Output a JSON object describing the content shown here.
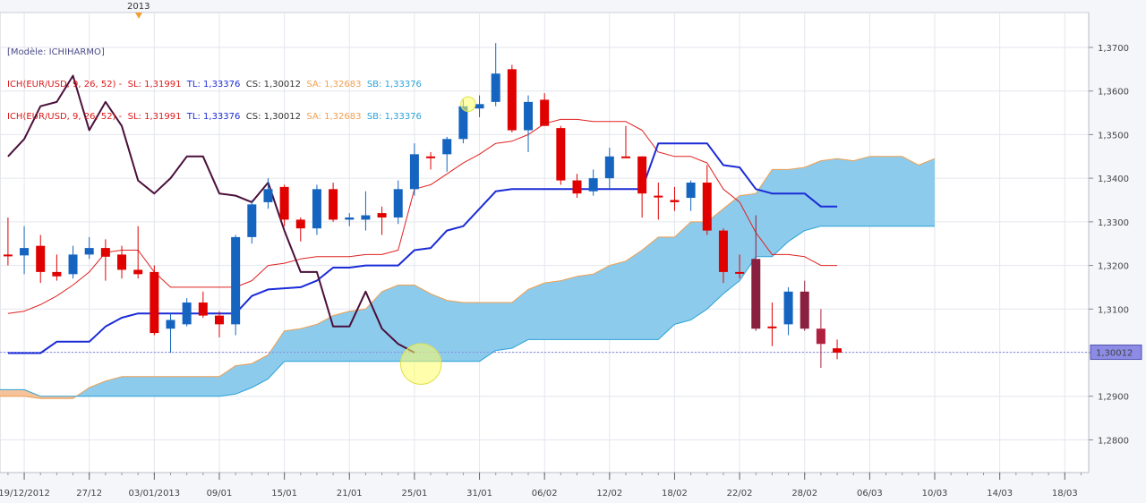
{
  "header": {
    "year_marker": "2013",
    "model_label": "[Modèle: ICHIHARMO]",
    "legend_lines": [
      {
        "symbol": "ICH(EUR/USD, 9, 26, 52) -",
        "sl": "SL: 1,31991",
        "tl": "TL: 1,33376",
        "cs": "CS: 1,30012",
        "sa": "SA: 1,32683",
        "sb": "SB: 1,33376"
      },
      {
        "symbol": "ICH(EUR/USD, 9, 26, 52) -",
        "sl": "SL: 1,31991",
        "tl": "TL: 1,33376",
        "cs": "CS: 1,30012",
        "sa": "SA: 1,32683",
        "sb": "SB: 1,33376"
      }
    ]
  },
  "colors": {
    "bull": "#1565c0",
    "bear": "#e00000",
    "bear_dark": "#8a2040",
    "tenkan": "#e02020",
    "kijun": "#1a2bd6",
    "chikou": "#4a0f3a",
    "cloud_bull": "#8ccbec",
    "cloud_bear": "#f5c29a",
    "span_a": "#f0a050",
    "span_b": "#2aa2d8",
    "highlight": "#ffff66",
    "current_price_bg": "#8c8ce6"
  },
  "chart_data": {
    "type": "candlestick",
    "instrument": "EUR/USD",
    "ylim": [
      1.2725,
      1.378
    ],
    "y_ticks": [
      "1,2800",
      "1,2900",
      "1,3000",
      "1,3100",
      "1,3200",
      "1,3300",
      "1,3400",
      "1,3500",
      "1,3600",
      "1,3700"
    ],
    "y_tick_values": [
      1.28,
      1.29,
      1.3,
      1.31,
      1.32,
      1.33,
      1.34,
      1.35,
      1.36,
      1.37
    ],
    "x_ticks": [
      {
        "i": 1,
        "label": "19/12/2012"
      },
      {
        "i": 5,
        "label": "27/12"
      },
      {
        "i": 9,
        "label": "03/01/2013"
      },
      {
        "i": 13,
        "label": "09/01"
      },
      {
        "i": 17,
        "label": "15/01"
      },
      {
        "i": 21,
        "label": "21/01"
      },
      {
        "i": 25,
        "label": "25/01"
      },
      {
        "i": 29,
        "label": "31/01"
      },
      {
        "i": 33,
        "label": "06/02"
      },
      {
        "i": 37,
        "label": "12/02"
      },
      {
        "i": 41,
        "label": "18/02"
      },
      {
        "i": 45,
        "label": "22/02"
      },
      {
        "i": 49,
        "label": "28/02"
      },
      {
        "i": 53,
        "label": "06/03"
      },
      {
        "i": 57,
        "label": "10/03"
      },
      {
        "i": 61,
        "label": "14/03"
      },
      {
        "i": 65,
        "label": "18/03"
      }
    ],
    "current_price": {
      "value": 1.3001,
      "label": "1,30012"
    },
    "candles": [
      {
        "o": 1.3225,
        "h": 1.331,
        "l": 1.32,
        "c": 1.3225
      },
      {
        "o": 1.3223,
        "h": 1.329,
        "l": 1.318,
        "c": 1.324
      },
      {
        "o": 1.3245,
        "h": 1.327,
        "l": 1.316,
        "c": 1.3185
      },
      {
        "o": 1.3185,
        "h": 1.3225,
        "l": 1.3165,
        "c": 1.3175
      },
      {
        "o": 1.318,
        "h": 1.3245,
        "l": 1.317,
        "c": 1.3225
      },
      {
        "o": 1.3225,
        "h": 1.3265,
        "l": 1.3215,
        "c": 1.324
      },
      {
        "o": 1.324,
        "h": 1.326,
        "l": 1.3165,
        "c": 1.322
      },
      {
        "o": 1.3225,
        "h": 1.3245,
        "l": 1.317,
        "c": 1.319
      },
      {
        "o": 1.319,
        "h": 1.329,
        "l": 1.317,
        "c": 1.318
      },
      {
        "o": 1.3185,
        "h": 1.32,
        "l": 1.304,
        "c": 1.3045
      },
      {
        "o": 1.3055,
        "h": 1.309,
        "l": 1.3,
        "c": 1.3075
      },
      {
        "o": 1.3065,
        "h": 1.3125,
        "l": 1.306,
        "c": 1.3115
      },
      {
        "o": 1.3115,
        "h": 1.314,
        "l": 1.308,
        "c": 1.3085
      },
      {
        "o": 1.3085,
        "h": 1.3095,
        "l": 1.3035,
        "c": 1.3065
      },
      {
        "o": 1.3065,
        "h": 1.327,
        "l": 1.304,
        "c": 1.3265
      },
      {
        "o": 1.3265,
        "h": 1.335,
        "l": 1.325,
        "c": 1.334
      },
      {
        "o": 1.3345,
        "h": 1.34,
        "l": 1.333,
        "c": 1.3375
      },
      {
        "o": 1.338,
        "h": 1.3385,
        "l": 1.329,
        "c": 1.3305
      },
      {
        "o": 1.3305,
        "h": 1.331,
        "l": 1.3255,
        "c": 1.3285
      },
      {
        "o": 1.3285,
        "h": 1.3385,
        "l": 1.327,
        "c": 1.3375
      },
      {
        "o": 1.3375,
        "h": 1.339,
        "l": 1.33,
        "c": 1.3305
      },
      {
        "o": 1.3305,
        "h": 1.332,
        "l": 1.329,
        "c": 1.331
      },
      {
        "o": 1.3305,
        "h": 1.337,
        "l": 1.328,
        "c": 1.3315
      },
      {
        "o": 1.332,
        "h": 1.3335,
        "l": 1.327,
        "c": 1.331
      },
      {
        "o": 1.331,
        "h": 1.3395,
        "l": 1.3295,
        "c": 1.3375
      },
      {
        "o": 1.3375,
        "h": 1.348,
        "l": 1.336,
        "c": 1.3455
      },
      {
        "o": 1.345,
        "h": 1.346,
        "l": 1.342,
        "c": 1.345
      },
      {
        "o": 1.3455,
        "h": 1.3495,
        "l": 1.3415,
        "c": 1.349
      },
      {
        "o": 1.349,
        "h": 1.358,
        "l": 1.348,
        "c": 1.3565
      },
      {
        "o": 1.356,
        "h": 1.359,
        "l": 1.354,
        "c": 1.357
      },
      {
        "o": 1.3575,
        "h": 1.371,
        "l": 1.3565,
        "c": 1.364
      },
      {
        "o": 1.365,
        "h": 1.366,
        "l": 1.3505,
        "c": 1.351
      },
      {
        "o": 1.351,
        "h": 1.359,
        "l": 1.346,
        "c": 1.3575
      },
      {
        "o": 1.358,
        "h": 1.3595,
        "l": 1.352,
        "c": 1.352
      },
      {
        "o": 1.3515,
        "h": 1.352,
        "l": 1.3385,
        "c": 1.3395
      },
      {
        "o": 1.3395,
        "h": 1.341,
        "l": 1.3355,
        "c": 1.3365
      },
      {
        "o": 1.337,
        "h": 1.342,
        "l": 1.336,
        "c": 1.34
      },
      {
        "o": 1.34,
        "h": 1.347,
        "l": 1.3375,
        "c": 1.345
      },
      {
        "o": 1.345,
        "h": 1.352,
        "l": 1.345,
        "c": 1.345
      },
      {
        "o": 1.345,
        "h": 1.345,
        "l": 1.331,
        "c": 1.3365
      },
      {
        "o": 1.336,
        "h": 1.339,
        "l": 1.3305,
        "c": 1.336
      },
      {
        "o": 1.335,
        "h": 1.338,
        "l": 1.3325,
        "c": 1.3345
      },
      {
        "o": 1.3355,
        "h": 1.3395,
        "l": 1.3325,
        "c": 1.339
      },
      {
        "o": 1.339,
        "h": 1.343,
        "l": 1.327,
        "c": 1.328
      },
      {
        "o": 1.328,
        "h": 1.3285,
        "l": 1.316,
        "c": 1.3185
      },
      {
        "o": 1.3185,
        "h": 1.3225,
        "l": 1.317,
        "c": 1.3185
      },
      {
        "o": 1.3215,
        "h": 1.3315,
        "l": 1.305,
        "c": 1.3055
      },
      {
        "o": 1.306,
        "h": 1.3115,
        "l": 1.3015,
        "c": 1.306
      },
      {
        "o": 1.3065,
        "h": 1.315,
        "l": 1.304,
        "c": 1.314
      },
      {
        "o": 1.314,
        "h": 1.3165,
        "l": 1.305,
        "c": 1.3055
      },
      {
        "o": 1.3055,
        "h": 1.31,
        "l": 1.2965,
        "c": 1.302
      },
      {
        "o": 1.301,
        "h": 1.303,
        "l": 1.2985,
        "c": 1.3
      }
    ],
    "tenkan_sen": [
      [
        0,
        1.309
      ],
      [
        1,
        1.3095
      ],
      [
        2,
        1.311
      ],
      [
        3,
        1.313
      ],
      [
        4,
        1.3155
      ],
      [
        5,
        1.3185
      ],
      [
        6,
        1.323
      ],
      [
        7,
        1.3235
      ],
      [
        8,
        1.3235
      ],
      [
        9,
        1.3185
      ],
      [
        10,
        1.315
      ],
      [
        11,
        1.315
      ],
      [
        12,
        1.315
      ],
      [
        13,
        1.315
      ],
      [
        14,
        1.315
      ],
      [
        15,
        1.3165
      ],
      [
        16,
        1.32
      ],
      [
        17,
        1.3205
      ],
      [
        18,
        1.3215
      ],
      [
        19,
        1.322
      ],
      [
        20,
        1.322
      ],
      [
        21,
        1.322
      ],
      [
        22,
        1.3225
      ],
      [
        23,
        1.3225
      ],
      [
        24,
        1.3235
      ],
      [
        25,
        1.3375
      ],
      [
        26,
        1.3385
      ],
      [
        27,
        1.341
      ],
      [
        28,
        1.3435
      ],
      [
        29,
        1.3455
      ],
      [
        30,
        1.348
      ],
      [
        31,
        1.3485
      ],
      [
        32,
        1.35
      ],
      [
        33,
        1.3525
      ],
      [
        34,
        1.3535
      ],
      [
        35,
        1.3535
      ],
      [
        36,
        1.353
      ],
      [
        37,
        1.353
      ],
      [
        38,
        1.353
      ],
      [
        39,
        1.351
      ],
      [
        40,
        1.346
      ],
      [
        41,
        1.345
      ],
      [
        42,
        1.345
      ],
      [
        43,
        1.3435
      ],
      [
        44,
        1.3375
      ],
      [
        45,
        1.3345
      ],
      [
        46,
        1.3275
      ],
      [
        47,
        1.3225
      ],
      [
        48,
        1.3225
      ],
      [
        49,
        1.322
      ],
      [
        50,
        1.32
      ],
      [
        51,
        1.32
      ]
    ],
    "kijun_sen": [
      [
        0,
        1.2999
      ],
      [
        2,
        1.2999
      ],
      [
        3,
        1.3025
      ],
      [
        4,
        1.3025
      ],
      [
        5,
        1.3025
      ],
      [
        6,
        1.306
      ],
      [
        7,
        1.308
      ],
      [
        8,
        1.309
      ],
      [
        13,
        1.309
      ],
      [
        14,
        1.309
      ],
      [
        15,
        1.313
      ],
      [
        16,
        1.3145
      ],
      [
        18,
        1.315
      ],
      [
        19,
        1.3165
      ],
      [
        20,
        1.3195
      ],
      [
        21,
        1.3195
      ],
      [
        22,
        1.32
      ],
      [
        24,
        1.32
      ],
      [
        25,
        1.3235
      ],
      [
        26,
        1.324
      ],
      [
        27,
        1.328
      ],
      [
        28,
        1.329
      ],
      [
        30,
        1.337
      ],
      [
        31,
        1.3375
      ],
      [
        36,
        1.3375
      ],
      [
        37,
        1.3375
      ],
      [
        38,
        1.3375
      ],
      [
        39,
        1.3375
      ],
      [
        40,
        1.348
      ],
      [
        41,
        1.348
      ],
      [
        43,
        1.348
      ],
      [
        44,
        1.343
      ],
      [
        45,
        1.3425
      ],
      [
        46,
        1.3375
      ],
      [
        47,
        1.3365
      ],
      [
        48,
        1.3365
      ],
      [
        49,
        1.3365
      ],
      [
        50,
        1.3335
      ],
      [
        51,
        1.3335
      ]
    ],
    "chikou_span": [
      [
        0,
        1.345
      ],
      [
        1,
        1.349
      ],
      [
        2,
        1.3565
      ],
      [
        3,
        1.3575
      ],
      [
        4,
        1.3635
      ],
      [
        5,
        1.351
      ],
      [
        6,
        1.3575
      ],
      [
        7,
        1.352
      ],
      [
        8,
        1.3395
      ],
      [
        9,
        1.3365
      ],
      [
        10,
        1.34
      ],
      [
        11,
        1.345
      ],
      [
        12,
        1.345
      ],
      [
        13,
        1.3365
      ],
      [
        14,
        1.336
      ],
      [
        15,
        1.3345
      ],
      [
        16,
        1.339
      ],
      [
        17,
        1.328
      ],
      [
        18,
        1.3185
      ],
      [
        19,
        1.3185
      ],
      [
        20,
        1.306
      ],
      [
        21,
        1.306
      ],
      [
        22,
        1.314
      ],
      [
        23,
        1.3055
      ],
      [
        24,
        1.302
      ],
      [
        25,
        1.3
      ]
    ],
    "senkou_span_a": [
      [
        0,
        1.2875
      ],
      [
        1,
        1.286
      ],
      [
        2,
        1.2855
      ],
      [
        3,
        1.287
      ],
      [
        4,
        1.289
      ],
      [
        5,
        1.29
      ],
      [
        6,
        1.29
      ],
      [
        9,
        1.29
      ],
      [
        10,
        1.29
      ],
      [
        11,
        1.2895
      ],
      [
        12,
        1.2895
      ],
      [
        13,
        1.2895
      ],
      [
        14,
        1.292
      ],
      [
        15,
        1.2935
      ],
      [
        16,
        1.2945
      ],
      [
        22,
        1.2945
      ],
      [
        23,
        1.297
      ],
      [
        24,
        1.2975
      ],
      [
        25,
        1.2995
      ],
      [
        26,
        1.305
      ],
      [
        27,
        1.3055
      ],
      [
        28,
        1.3065
      ],
      [
        29,
        1.3085
      ],
      [
        30,
        1.3095
      ],
      [
        31,
        1.31
      ],
      [
        32,
        1.314
      ],
      [
        33,
        1.3155
      ],
      [
        34,
        1.3155
      ],
      [
        35,
        1.3135
      ],
      [
        36,
        1.312
      ],
      [
        37,
        1.3115
      ],
      [
        40,
        1.3115
      ],
      [
        41,
        1.3145
      ],
      [
        42,
        1.316
      ],
      [
        43,
        1.3165
      ],
      [
        44,
        1.3175
      ],
      [
        45,
        1.318
      ],
      [
        46,
        1.32
      ],
      [
        47,
        1.321
      ],
      [
        48,
        1.3235
      ],
      [
        49,
        1.3265
      ],
      [
        50,
        1.3265
      ],
      [
        51,
        1.33
      ],
      [
        52,
        1.33
      ],
      [
        53,
        1.333
      ],
      [
        54,
        1.336
      ],
      [
        55,
        1.3365
      ],
      [
        56,
        1.342
      ],
      [
        57,
        1.342
      ],
      [
        58,
        1.3425
      ],
      [
        59,
        1.344
      ],
      [
        60,
        1.3445
      ],
      [
        61,
        1.344
      ],
      [
        62,
        1.345
      ],
      [
        63,
        1.345
      ],
      [
        64,
        1.345
      ],
      [
        65,
        1.343
      ],
      [
        66,
        1.3445
      ]
    ],
    "senkou_span_b": [
      [
        0,
        1.284
      ],
      [
        1,
        1.284
      ],
      [
        2,
        1.284
      ],
      [
        3,
        1.2865
      ],
      [
        4,
        1.289
      ],
      [
        5,
        1.2915
      ],
      [
        6,
        1.2915
      ],
      [
        9,
        1.2915
      ],
      [
        10,
        1.2915
      ],
      [
        11,
        1.29
      ],
      [
        12,
        1.29
      ],
      [
        18,
        1.29
      ],
      [
        19,
        1.29
      ],
      [
        20,
        1.29
      ],
      [
        21,
        1.29
      ],
      [
        22,
        1.29
      ],
      [
        23,
        1.2905
      ],
      [
        24,
        1.292
      ],
      [
        25,
        1.294
      ],
      [
        26,
        1.298
      ],
      [
        27,
        1.298
      ],
      [
        36,
        1.298
      ],
      [
        37,
        1.298
      ],
      [
        38,
        1.298
      ],
      [
        39,
        1.3005
      ],
      [
        40,
        1.301
      ],
      [
        41,
        1.303
      ],
      [
        48,
        1.303
      ],
      [
        49,
        1.303
      ],
      [
        50,
        1.3065
      ],
      [
        51,
        1.3075
      ],
      [
        52,
        1.31
      ],
      [
        53,
        1.3135
      ],
      [
        54,
        1.3165
      ],
      [
        55,
        1.322
      ],
      [
        56,
        1.322
      ],
      [
        57,
        1.3255
      ],
      [
        58,
        1.328
      ],
      [
        59,
        1.329
      ],
      [
        66,
        1.329
      ]
    ],
    "cloud_start_index": -9,
    "annotations": [
      {
        "type": "circle",
        "x": 25.4,
        "y": 1.2974,
        "r_data_x": 1.25,
        "label": ""
      },
      {
        "type": "circle",
        "x": 28.3,
        "y": 1.357,
        "r_data_x": 0.45,
        "label": ""
      }
    ]
  }
}
